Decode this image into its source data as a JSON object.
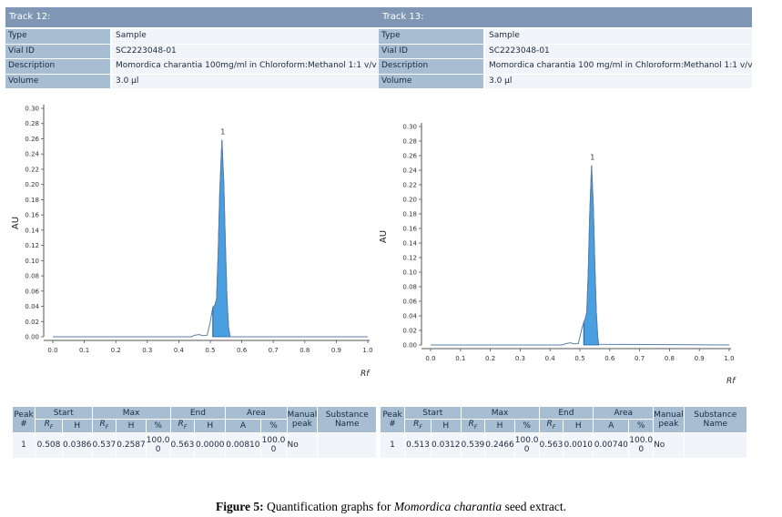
{
  "tracks": [
    {
      "title": "Track 12:",
      "info": [
        {
          "label": "Type",
          "value": "Sample"
        },
        {
          "label": "Vial ID",
          "value": "SC2223048-01"
        },
        {
          "label": "Description",
          "value": "Momordica charantia 100mg/ml in Chloroform:Methanol 1:1 v/v"
        },
        {
          "label": "Volume",
          "value": "3.0 µl"
        }
      ],
      "table": {
        "headers": {
          "peak": [
            "Peak",
            "#"
          ],
          "start": "Start",
          "max": "Max",
          "end": "End",
          "area": "Area",
          "manual": [
            "Manual",
            "peak"
          ],
          "substance": [
            "Substance",
            "Name"
          ]
        },
        "sub": {
          "rf": "R",
          "rf_sub": "F",
          "h": "H",
          "pct": "%",
          "a": "A"
        },
        "row": {
          "peak": "1",
          "start_rf": "0.508",
          "start_h": "0.0386",
          "max_rf": "0.537",
          "max_h": "0.2587",
          "max_pct": [
            "100.0",
            "0"
          ],
          "end_rf": "0.563",
          "end_h": "0.0000",
          "area_a": "0.00810",
          "area_pct": [
            "100.0",
            "0"
          ],
          "manual": "No",
          "substance": ""
        }
      }
    },
    {
      "title": "Track 13:",
      "info": [
        {
          "label": "Type",
          "value": "Sample"
        },
        {
          "label": "Vial ID",
          "value": "SC2223048-01"
        },
        {
          "label": "Description",
          "value": "Momordica charantia 100 mg/ml in Chloroform:Methanol 1:1 v/v"
        },
        {
          "label": "Volume",
          "value": "3.0 µl"
        }
      ],
      "table": {
        "headers": {
          "peak": [
            "Peak",
            "#"
          ],
          "start": "Start",
          "max": "Max",
          "end": "End",
          "area": "Area",
          "manual": [
            "Manual",
            "peak"
          ],
          "substance": [
            "Substance",
            "Name"
          ]
        },
        "sub": {
          "rf": "R",
          "rf_sub": "F",
          "h": "H",
          "pct": "%",
          "a": "A"
        },
        "row": {
          "peak": "1",
          "start_rf": "0.513",
          "start_h": "0.0312",
          "max_rf": "0.539",
          "max_h": "0.2466",
          "max_pct": [
            "100.0",
            "0"
          ],
          "end_rf": "0.563",
          "end_h": "0.0010",
          "area_a": "0.00740",
          "area_pct": [
            "100.0",
            "0"
          ],
          "manual": "No",
          "substance": ""
        }
      }
    }
  ],
  "chart_data": [
    {
      "type": "line",
      "ylabel": "AU",
      "xlabel": "Rf",
      "xlim": [
        0.0,
        1.0
      ],
      "ylim": [
        0.0,
        0.3
      ],
      "xticks": [
        "0.0",
        "0.1",
        "0.2",
        "0.3",
        "0.4",
        "0.5",
        "0.6",
        "0.7",
        "0.8",
        "0.9",
        "1.0"
      ],
      "yticks": [
        "0.00",
        "0.02",
        "0.04",
        "0.06",
        "0.08",
        "0.10",
        "0.12",
        "0.14",
        "0.16",
        "0.18",
        "0.20",
        "0.22",
        "0.24",
        "0.26",
        "0.28",
        "0.30"
      ],
      "peak_label": "1",
      "peak_apex": {
        "x": 0.537,
        "y": 0.2587
      },
      "peak_area": {
        "start": 0.508,
        "end": 0.563
      },
      "trace": [
        [
          0.0,
          0.0
        ],
        [
          0.44,
          0.0
        ],
        [
          0.45,
          0.002
        ],
        [
          0.465,
          0.003
        ],
        [
          0.475,
          0.0015
        ],
        [
          0.49,
          0.002
        ],
        [
          0.5,
          0.02
        ],
        [
          0.508,
          0.0386
        ],
        [
          0.515,
          0.042
        ],
        [
          0.52,
          0.05
        ],
        [
          0.525,
          0.11
        ],
        [
          0.53,
          0.19
        ],
        [
          0.537,
          0.2587
        ],
        [
          0.543,
          0.2
        ],
        [
          0.548,
          0.12
        ],
        [
          0.553,
          0.05
        ],
        [
          0.558,
          0.012
        ],
        [
          0.563,
          0.0
        ],
        [
          1.0,
          0.0
        ]
      ]
    },
    {
      "type": "line",
      "ylabel": "AU",
      "xlabel": "Rf",
      "xlim": [
        0.0,
        1.0
      ],
      "ylim": [
        0.0,
        0.3
      ],
      "xticks": [
        "0.0",
        "0.1",
        "0.2",
        "0.3",
        "0.4",
        "0.5",
        "0.6",
        "0.7",
        "0.8",
        "0.9",
        "1.0"
      ],
      "yticks": [
        "0.00",
        "0.02",
        "0.04",
        "0.06",
        "0.08",
        "0.10",
        "0.12",
        "0.14",
        "0.16",
        "0.18",
        "0.20",
        "0.22",
        "0.24",
        "0.26",
        "0.28",
        "0.30"
      ],
      "peak_label": "1",
      "peak_apex": {
        "x": 0.539,
        "y": 0.2466
      },
      "peak_area": {
        "start": 0.513,
        "end": 0.563
      },
      "trace": [
        [
          0.0,
          0.0
        ],
        [
          0.44,
          0.0
        ],
        [
          0.455,
          0.002
        ],
        [
          0.47,
          0.003
        ],
        [
          0.48,
          0.0015
        ],
        [
          0.495,
          0.002
        ],
        [
          0.505,
          0.02
        ],
        [
          0.513,
          0.0312
        ],
        [
          0.518,
          0.036
        ],
        [
          0.523,
          0.045
        ],
        [
          0.528,
          0.1
        ],
        [
          0.533,
          0.18
        ],
        [
          0.539,
          0.2466
        ],
        [
          0.545,
          0.19
        ],
        [
          0.55,
          0.11
        ],
        [
          0.555,
          0.045
        ],
        [
          0.56,
          0.01
        ],
        [
          0.563,
          0.001
        ],
        [
          1.0,
          0.0
        ]
      ]
    }
  ],
  "caption": {
    "label": "Figure 5:",
    "text1": " Quantification graphs for ",
    "species": "Momordica charantia",
    "text2": " seed extract."
  }
}
